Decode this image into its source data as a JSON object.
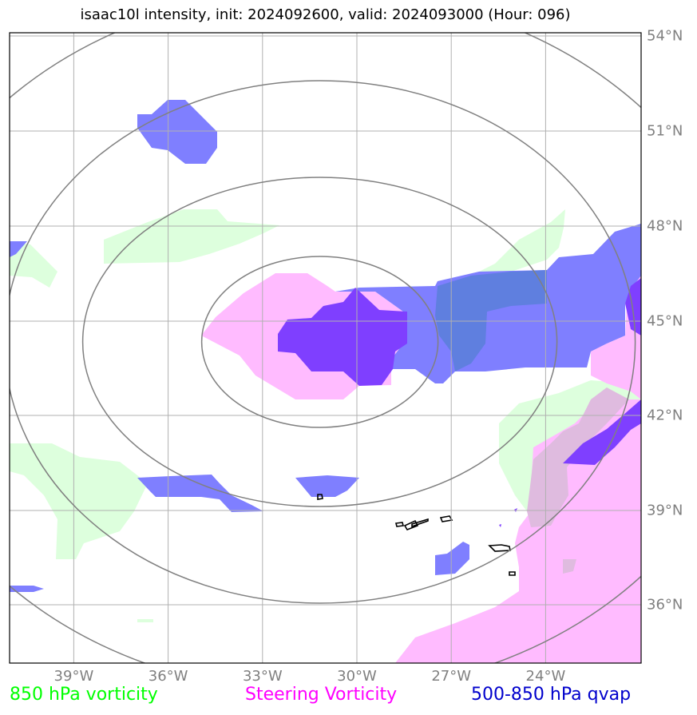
{
  "title": "isaac10l intensity, init: 2024092600, valid: 2024093000 (Hour: 096)",
  "map": {
    "lon_range": [
      -41,
      -21
    ],
    "lat_range": [
      34,
      54
    ],
    "lon_ticks": [
      {
        "value": -39,
        "label": "39°W"
      },
      {
        "value": -36,
        "label": "36°W"
      },
      {
        "value": -33,
        "label": "33°W"
      },
      {
        "value": -30,
        "label": "30°W"
      },
      {
        "value": -27,
        "label": "27°W"
      },
      {
        "value": -24,
        "label": "24°W"
      }
    ],
    "lat_ticks": [
      {
        "value": 54,
        "label": "54°N"
      },
      {
        "value": 51,
        "label": "51°N"
      },
      {
        "value": 48,
        "label": "48°N"
      },
      {
        "value": 45,
        "label": "45°N"
      },
      {
        "value": 42,
        "label": "42°N"
      },
      {
        "value": 39,
        "label": "39°N"
      }
    ],
    "lat_tick_36": {
      "value": 36,
      "label": "36°N"
    },
    "storm_center": {
      "lon": -31,
      "lat": 44.5
    },
    "gridlines": true
  },
  "legend": {
    "vort850": {
      "label": "850 hPa vorticity",
      "color": "#00ff00"
    },
    "steering": {
      "label": "Steering Vorticity",
      "color": "#ff00ff"
    },
    "qvap": {
      "label": "500-850 hPa qvap",
      "color": "#0000cc"
    }
  },
  "colors": {
    "green_fill": "#ddffdd",
    "pink_fill": "#ffbbff",
    "blue_fill": "#7f7fff",
    "violet_fill": "#7f3fff",
    "mid_blue_fill": "#5f7fdf",
    "mauve_fill": "#dfbbdf",
    "grid": "#b0b0b0",
    "rings": "#808080"
  }
}
